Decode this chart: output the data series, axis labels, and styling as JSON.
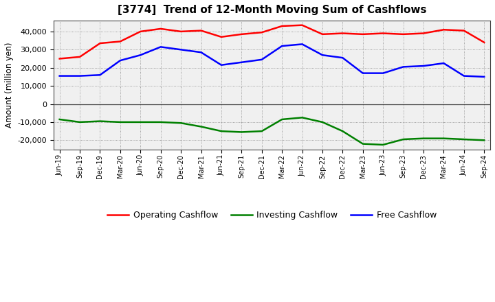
{
  "title": "[3774]  Trend of 12-Month Moving Sum of Cashflows",
  "ylabel": "Amount (million yen)",
  "background_color": "#ffffff",
  "plot_background": "#e8e8e8",
  "grid_color": "#555555",
  "x_labels": [
    "Jun-19",
    "Sep-19",
    "Dec-19",
    "Mar-20",
    "Jun-20",
    "Sep-20",
    "Dec-20",
    "Mar-21",
    "Jun-21",
    "Sep-21",
    "Dec-21",
    "Mar-22",
    "Jun-22",
    "Sep-22",
    "Dec-22",
    "Mar-23",
    "Jun-23",
    "Sep-23",
    "Dec-23",
    "Mar-24",
    "Jun-24",
    "Sep-24"
  ],
  "operating_cashflow": [
    25000,
    26000,
    33500,
    34500,
    40000,
    41500,
    40000,
    40500,
    37000,
    38500,
    39500,
    43000,
    43500,
    38500,
    39000,
    38500,
    39000,
    38500,
    39000,
    41000,
    40500,
    34000
  ],
  "investing_cashflow": [
    -8500,
    -10000,
    -9500,
    -10000,
    -10000,
    -10000,
    -10500,
    -12500,
    -15000,
    -15500,
    -15000,
    -8500,
    -7500,
    -10000,
    -15000,
    -22000,
    -22500,
    -19500,
    -19000,
    -19000,
    -19500,
    -20000
  ],
  "free_cashflow": [
    15500,
    15500,
    16000,
    24000,
    27000,
    31500,
    30000,
    28500,
    21500,
    23000,
    24500,
    32000,
    33000,
    27000,
    25500,
    17000,
    17000,
    20500,
    21000,
    22500,
    15500,
    15000
  ],
  "ylim": [
    -25000,
    46000
  ],
  "yticks": [
    -20000,
    -10000,
    0,
    10000,
    20000,
    30000,
    40000
  ],
  "line_colors": {
    "operating": "#ff0000",
    "investing": "#008000",
    "free": "#0000ff"
  },
  "legend_labels": [
    "Operating Cashflow",
    "Investing Cashflow",
    "Free Cashflow"
  ]
}
